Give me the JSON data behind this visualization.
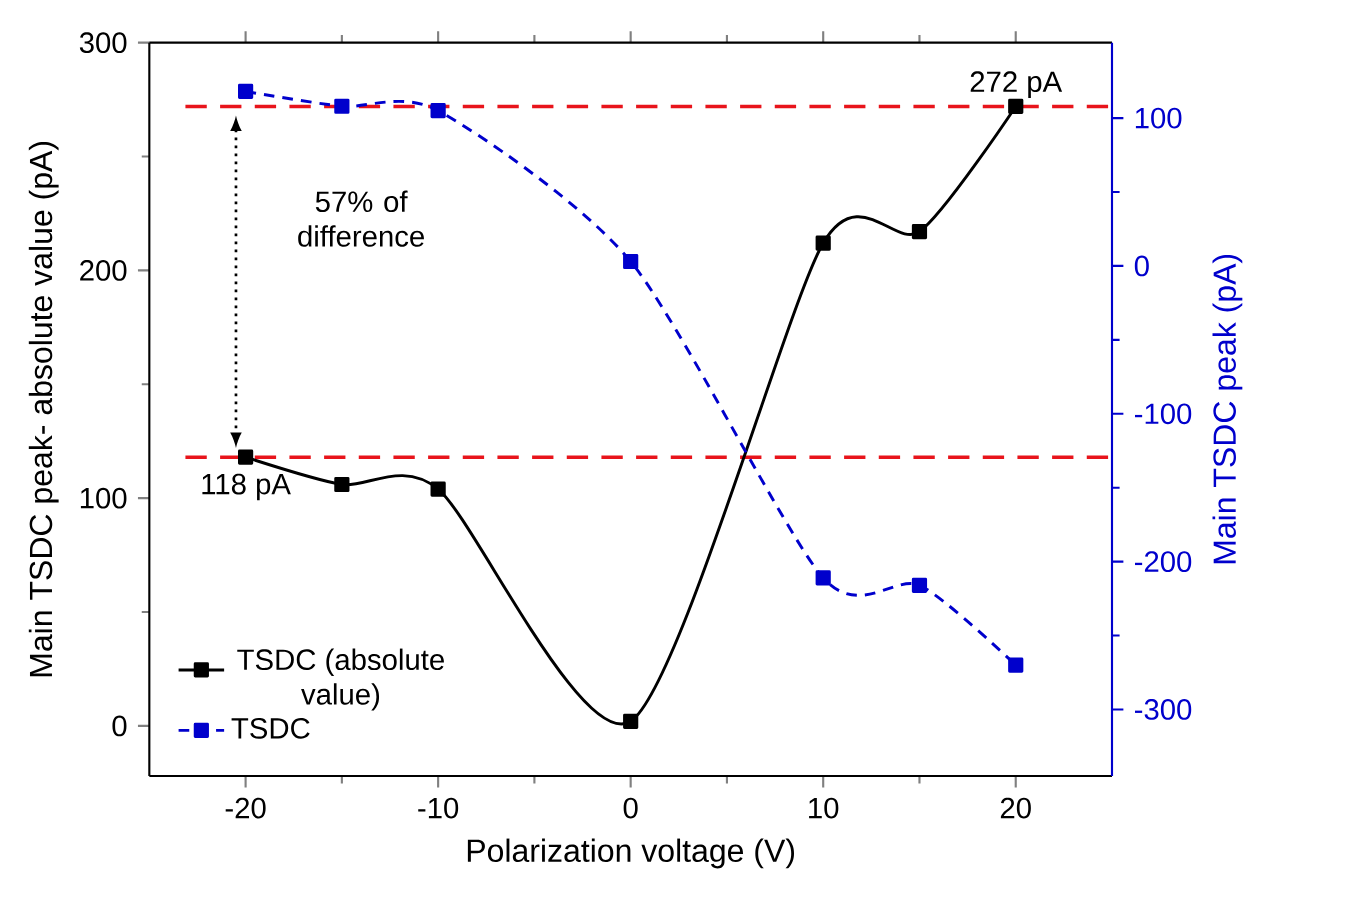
{
  "chart_data": {
    "type": "line",
    "xlabel": "Polarization voltage (V)",
    "ylabel": "Main TSDC peak- absolute value (pA)",
    "y2label": "Main TSDC peak (pA)",
    "x": [
      -20,
      -15,
      -10,
      0,
      10,
      15,
      20
    ],
    "xlim": [
      -25,
      25
    ],
    "xticks": [
      -20,
      -10,
      0,
      10,
      20
    ],
    "ylim": [
      -22,
      300
    ],
    "yticks": [
      0,
      100,
      200,
      300
    ],
    "y2lim": [
      -345,
      151
    ],
    "y2ticks": [
      -300,
      -200,
      -100,
      0,
      100
    ],
    "marker": "square",
    "legend": "bottom left",
    "series": [
      {
        "name": "TSDC (absolute value)",
        "color": "#000000",
        "line_style": "solid",
        "values": [
          118,
          106,
          104,
          2,
          212,
          217,
          272
        ]
      },
      {
        "name": "TSDC",
        "color": "#0000cc",
        "line_style": "dashed",
        "axis": "y2",
        "values": [
          118,
          108,
          105,
          3,
          -211,
          -216,
          -270
        ]
      }
    ],
    "ref_lines": [
      {
        "axis": "y",
        "value": 272,
        "color": "#e8141b",
        "line_style": "dashed"
      },
      {
        "axis": "y",
        "value": 118,
        "color": "#e8141b",
        "line_style": "dashed"
      }
    ],
    "annotations": [
      {
        "text": "272 pA",
        "x": 20,
        "y": 272
      },
      {
        "text": "118 pA",
        "x": -20,
        "y": 118
      },
      "57% of difference"
    ]
  }
}
